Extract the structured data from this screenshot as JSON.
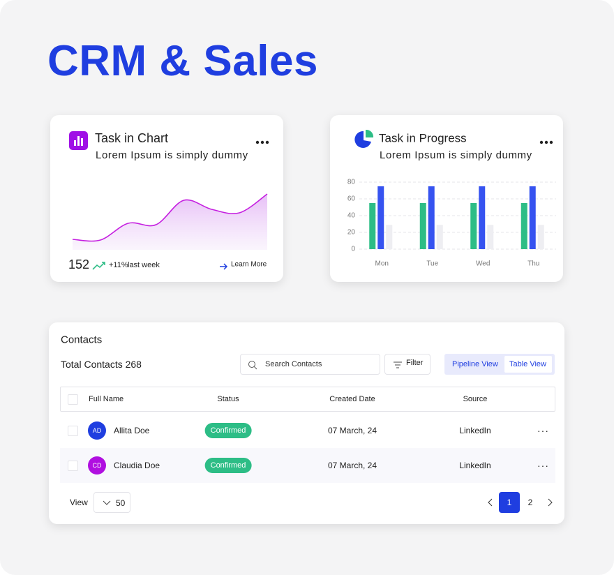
{
  "header": {
    "title": "CRM & Sales"
  },
  "chart_data": [
    {
      "type": "area",
      "title": "Task in Chart",
      "subtitle": "Lorem Ipsum is simply dummy",
      "values": [
        15,
        14,
        38,
        36,
        71,
        58,
        53,
        80
      ],
      "color": "#c51fe0",
      "total": 152,
      "change": "+11%",
      "change_label": "last week",
      "link": "Learn More"
    },
    {
      "type": "bar",
      "title": "Task in Progress",
      "subtitle": "Lorem Ipsum is simply dummy",
      "categories": [
        "Mon",
        "Tue",
        "Wed",
        "Thu"
      ],
      "series": [
        {
          "color": "#2dbd86",
          "values": [
            55,
            55,
            55,
            55
          ]
        },
        {
          "color": "#3653f0",
          "values": [
            75,
            75,
            75,
            75
          ]
        },
        {
          "color": "#eeeef2",
          "values": [
            29,
            29,
            29,
            29
          ]
        }
      ],
      "ylim": [
        0,
        80
      ],
      "yticks": [
        0,
        20,
        40,
        60,
        80
      ],
      "grid": true
    }
  ],
  "contacts": {
    "title": "Contacts",
    "total_label": "Total Contacts",
    "total": 268,
    "search_placeholder": "Search Contacts",
    "filter": "Filter",
    "views": [
      "Pipeline View",
      "Table View"
    ],
    "columns": [
      "Full Name",
      "Status",
      "Created Date",
      "Source"
    ],
    "rows": [
      {
        "initials": "AD",
        "name": "Allita Doe",
        "status": "Confirmed",
        "date": "07 March, 24",
        "source": "LinkedIn",
        "color": "#1f3ee0"
      },
      {
        "initials": "CD",
        "name": "Claudia Doe",
        "status": "Confirmed",
        "date": "07 March, 24",
        "source": "LinkedIn",
        "color": "#b00fe0"
      }
    ],
    "view_label": "View",
    "page_size": 50,
    "pages": [
      1,
      2
    ]
  }
}
